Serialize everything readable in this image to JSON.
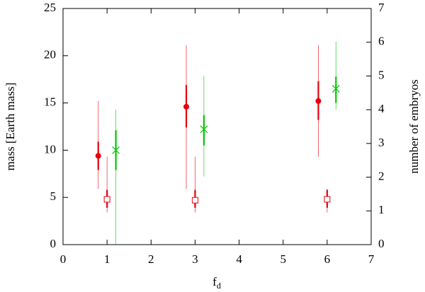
{
  "chart_data": {
    "type": "errorbar",
    "xlabel": "f",
    "xlabel_subscript": "d",
    "ylabel": "mass [Earth mass]",
    "y2label": "number of embryos",
    "xlim": [
      0,
      7
    ],
    "xticks": [
      0,
      1,
      2,
      3,
      4,
      5,
      6,
      7
    ],
    "ylim": [
      0,
      25
    ],
    "yticks": [
      0,
      5,
      10,
      15,
      20,
      25
    ],
    "y2lim": [
      0,
      7
    ],
    "y2ticks": [
      0,
      1,
      2,
      3,
      4,
      5,
      6,
      7
    ],
    "series": [
      {
        "marker": "circle",
        "color": "#e8000b",
        "x": [
          0.8,
          2.8,
          5.8
        ],
        "values": [
          9.4,
          14.6,
          15.2
        ],
        "inner_low": [
          7.9,
          12.4,
          13.2
        ],
        "inner_high": [
          10.9,
          16.9,
          17.3
        ],
        "outer_low": [
          5.9,
          5.9,
          9.3
        ],
        "outer_high": [
          15.2,
          21.1,
          21.1
        ]
      },
      {
        "marker": "square",
        "color": "#e8000b",
        "x": [
          1,
          3,
          6
        ],
        "values": [
          4.8,
          4.7,
          4.8
        ],
        "inner_low": [
          3.9,
          3.9,
          3.9
        ],
        "inner_high": [
          5.8,
          5.8,
          5.8
        ],
        "outer_low": [
          3.4,
          3.4,
          3.4
        ],
        "outer_high": [
          9.3,
          9.3,
          5.9
        ]
      },
      {
        "marker": "cross",
        "color": "#00c800",
        "axis": "y2",
        "x": [
          1.2,
          3.2,
          6.2
        ],
        "values": [
          2.8,
          3.42,
          4.62
        ],
        "inner_low": [
          2.21,
          2.94,
          4.2
        ],
        "inner_high": [
          3.39,
          3.84,
          4.98
        ],
        "outer_low": [
          0,
          2.02,
          4.0
        ],
        "outer_high": [
          4.0,
          5.01,
          6.02
        ]
      }
    ]
  }
}
